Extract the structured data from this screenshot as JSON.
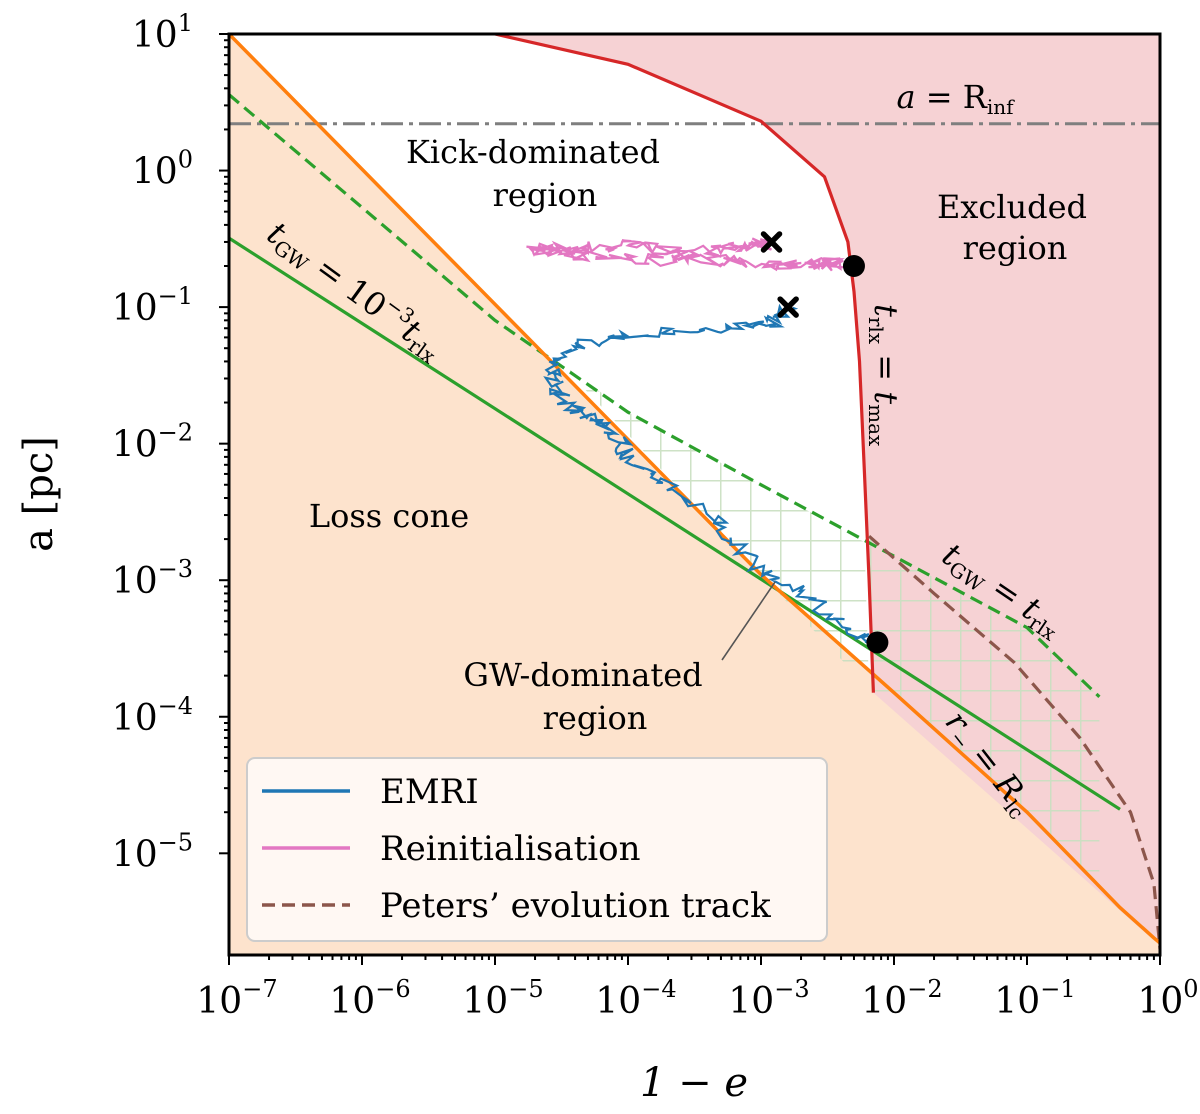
{
  "chart_data": {
    "type": "line",
    "xscale": "log",
    "yscale": "log",
    "xlabel": "1 − e",
    "ylabel": "a [pc]",
    "xlim": [
      1e-07,
      1
    ],
    "ylim": [
      1.8e-06,
      10
    ],
    "x_ticks": [
      {
        "value": 1e-07,
        "base": "10",
        "exp": "−7"
      },
      {
        "value": 1e-06,
        "base": "10",
        "exp": "−6"
      },
      {
        "value": 1e-05,
        "base": "10",
        "exp": "−5"
      },
      {
        "value": 0.0001,
        "base": "10",
        "exp": "−4"
      },
      {
        "value": 0.001,
        "base": "10",
        "exp": "−3"
      },
      {
        "value": 0.01,
        "base": "10",
        "exp": "−2"
      },
      {
        "value": 0.1,
        "base": "10",
        "exp": "−1"
      },
      {
        "value": 1,
        "base": "10",
        "exp": "0"
      }
    ],
    "y_ticks": [
      {
        "value": 10,
        "base": "10",
        "exp": "1"
      },
      {
        "value": 1,
        "base": "10",
        "exp": "0"
      },
      {
        "value": 0.1,
        "base": "10",
        "exp": "−1"
      },
      {
        "value": 0.01,
        "base": "10",
        "exp": "−2"
      },
      {
        "value": 0.001,
        "base": "10",
        "exp": "−3"
      },
      {
        "value": 0.0001,
        "base": "10",
        "exp": "−4"
      },
      {
        "value": 1e-05,
        "base": "10",
        "exp": "−5"
      }
    ],
    "colors": {
      "loss_cone_fill": "#fde3cd",
      "excluded_fill": "#f6d2d4",
      "hatch": "#c8dfc0",
      "orange": "#ff7f0e",
      "green": "#2ca02c",
      "red": "#d62728",
      "blue": "#1f77b4",
      "pink": "#e377c2",
      "brown": "#8c564b",
      "gray": "#7f7f7f"
    },
    "series": [
      {
        "name": "EMRI",
        "color": "#1f77b4",
        "style": "solid",
        "x": [
          0.0016,
          0.0012,
          0.0006,
          0.00015,
          5e-05,
          3e-05,
          2.5e-05,
          3.5e-05,
          5e-05,
          8e-05,
          0.0001,
          0.0002,
          0.0005,
          0.001,
          0.0025,
          0.005,
          0.007
        ],
        "y": [
          0.1,
          0.075,
          0.07,
          0.065,
          0.055,
          0.04,
          0.03,
          0.02,
          0.015,
          0.012,
          0.008,
          0.005,
          0.0025,
          0.0012,
          0.0007,
          0.0004,
          0.00035
        ]
      },
      {
        "name": "Reinitialisation",
        "color": "#e377c2",
        "style": "solid",
        "x": [
          0.0012,
          0.0008,
          0.0003,
          0.0001,
          3e-05,
          2e-05,
          5e-05,
          0.0002,
          0.0006,
          0.0015,
          0.003,
          0.0045
        ],
        "y": [
          0.3,
          0.28,
          0.25,
          0.28,
          0.27,
          0.26,
          0.24,
          0.22,
          0.22,
          0.2,
          0.21,
          0.2
        ]
      },
      {
        "name": "Peters’ evolution track",
        "color": "#8c564b",
        "style": "dashed",
        "x": [
          0.0065,
          0.02,
          0.08,
          0.25,
          0.6,
          0.9,
          1.0
        ],
        "y": [
          0.0021,
          0.0008,
          0.00025,
          7e-05,
          2e-05,
          6e-06,
          2e-06
        ]
      }
    ],
    "boundary_lines": [
      {
        "label_parts": [
          "t",
          "GW",
          " = 10",
          "−3",
          "t",
          "rlx"
        ],
        "color": "#2ca02c",
        "style": "solid",
        "x": [
          1e-07,
          0.5
        ],
        "y": [
          0.32,
          2.1e-05
        ]
      },
      {
        "label_parts": [
          "t",
          "GW",
          " = ",
          "t",
          "rlx"
        ],
        "color": "#2ca02c",
        "style": "dashed",
        "x": [
          1e-07,
          1e-05,
          0.0001,
          0.001,
          0.01,
          0.1,
          0.35
        ],
        "y": [
          3.6,
          0.08,
          0.017,
          0.005,
          0.0015,
          0.00045,
          0.00014
        ]
      },
      {
        "label_parts": [
          "t",
          "rlx",
          " = ",
          "t",
          "max"
        ],
        "color": "#d62728",
        "style": "solid",
        "x": [
          1e-05,
          0.0001,
          0.001,
          0.003,
          0.0045,
          0.005,
          0.0055,
          0.006,
          0.0065,
          0.007
        ],
        "y": [
          10,
          6,
          2.3,
          0.9,
          0.3,
          0.13,
          0.04,
          0.006,
          0.001,
          0.00015
        ]
      },
      {
        "label_parts": [
          "r",
          "−",
          " = ",
          "R",
          "lc"
        ],
        "color": "#ff7f0e",
        "style": "solid",
        "x": [
          1e-07,
          0.001,
          0.01,
          0.1,
          0.5,
          0.9,
          1.0
        ],
        "y": [
          10,
          0.0011,
          0.00015,
          2e-05,
          4e-06,
          2.4e-06,
          2.2e-06
        ]
      },
      {
        "label_parts": [
          "a = ",
          "R",
          "inf"
        ],
        "color": "#7f7f7f",
        "style": "dashdot",
        "x": [
          1e-07,
          1
        ],
        "y": [
          2.2,
          2.2
        ]
      }
    ],
    "markers": [
      {
        "symbol": "x",
        "x": 0.0012,
        "y": 0.3
      },
      {
        "symbol": "x",
        "x": 0.0016,
        "y": 0.1
      },
      {
        "symbol": "dot",
        "x": 0.005,
        "y": 0.2
      },
      {
        "symbol": "dot",
        "x": 0.0075,
        "y": 0.00035
      }
    ],
    "region_labels": {
      "kick": [
        "Kick-dominated",
        "region"
      ],
      "excluded": [
        "Excluded",
        "region"
      ],
      "loss_cone": "Loss cone",
      "gw": [
        "GW-dominated",
        "region"
      ]
    },
    "legend": {
      "position": "lower-left",
      "entries": [
        "EMRI",
        "Reinitialisation",
        "Peters’ evolution track"
      ]
    }
  }
}
